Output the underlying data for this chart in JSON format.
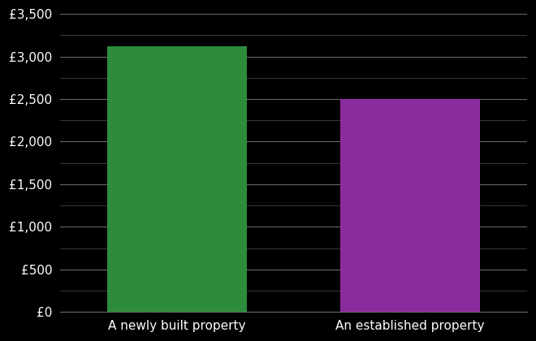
{
  "categories": [
    "A newly built property",
    "An established property"
  ],
  "values": [
    3119,
    2496
  ],
  "bar_colors": [
    "#2d8c3c",
    "#8b2c9e"
  ],
  "background_color": "#000000",
  "text_color": "#ffffff",
  "grid_color_major": "#666666",
  "grid_color_minor": "#444444",
  "ylim": [
    0,
    3500
  ],
  "yticks_major": [
    0,
    500,
    1000,
    1500,
    2000,
    2500,
    3000,
    3500
  ],
  "yticks_minor": [
    250,
    750,
    1250,
    1750,
    2250,
    2750,
    3250
  ],
  "ytick_labels": [
    "£0",
    "£500",
    "£1,000",
    "£1,500",
    "£2,000",
    "£2,500",
    "£3,000",
    "£3,500"
  ],
  "bar_positions": [
    1,
    2
  ],
  "bar_width": 0.6,
  "xlim": [
    0.5,
    2.5
  ],
  "tick_fontsize": 11,
  "label_fontsize": 11
}
